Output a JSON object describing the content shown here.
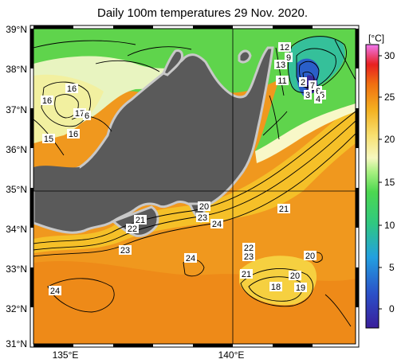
{
  "title": "Daily 100m temperatures 29 Nov. 2020.",
  "lat_labels": [
    "39°N",
    "38°N",
    "37°N",
    "36°N",
    "35°N",
    "34°N",
    "33°N",
    "32°N",
    "31°N"
  ],
  "lon_labels": [
    "135°E",
    "140°E"
  ],
  "colorbar": {
    "unit": "[°C]",
    "ticks": [
      "30",
      "25",
      "20",
      "15",
      "10",
      "5",
      "0"
    ]
  },
  "contour_labels": [
    "12",
    "9",
    "13",
    "11",
    "2",
    "7",
    "3",
    "6",
    "5",
    "4",
    "16",
    "16",
    "17",
    "6",
    "15",
    "16",
    "21",
    "22",
    "20",
    "23",
    "24",
    "23",
    "24",
    "21",
    "22",
    "23",
    "24",
    "20",
    "21",
    "18",
    "20",
    "19",
    "24"
  ],
  "colors": {
    "land": "#5a5a5a",
    "coast": "#c9c9c9",
    "warm_ocean": "#f08c1c",
    "mid_ocean": "#f2c020",
    "cool_ocean": "#6ed850",
    "cold_ocean": "#2ea0e6",
    "frame": "#000000"
  }
}
